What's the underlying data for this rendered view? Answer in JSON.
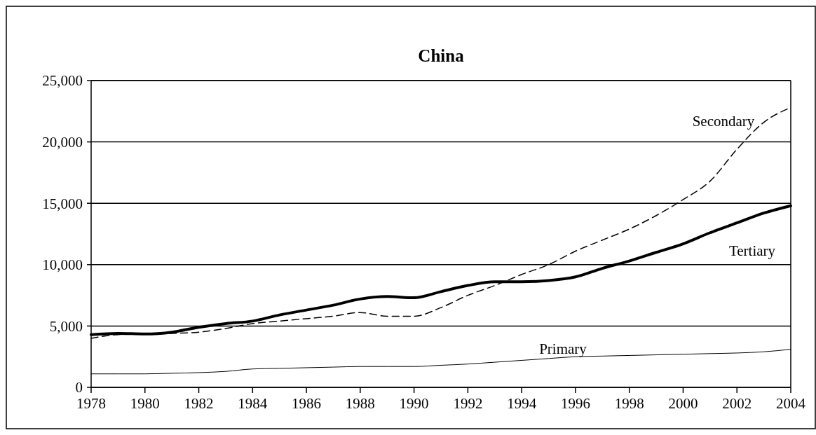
{
  "chart_data": {
    "type": "line",
    "title": "China",
    "x": [
      1978,
      1979,
      1980,
      1981,
      1982,
      1983,
      1984,
      1985,
      1986,
      1987,
      1988,
      1989,
      1990,
      1991,
      1992,
      1993,
      1994,
      1995,
      1996,
      1997,
      1998,
      1999,
      2000,
      2001,
      2002,
      2003,
      2004
    ],
    "series": [
      {
        "name": "Secondary",
        "color": "#000000",
        "line_style": "dashed",
        "values": [
          4000,
          4300,
          4350,
          4400,
          4500,
          4800,
          5200,
          5400,
          5600,
          5800,
          6100,
          5800,
          5800,
          6500,
          7500,
          8300,
          9200,
          10000,
          11100,
          12000,
          12900,
          14000,
          15300,
          16800,
          19400,
          21600,
          22800
        ]
      },
      {
        "name": "Tertiary",
        "color": "#000000",
        "line_style": "solid",
        "values": [
          4300,
          4400,
          4350,
          4500,
          4900,
          5200,
          5400,
          5900,
          6300,
          6700,
          7200,
          7400,
          7300,
          7800,
          8300,
          8600,
          8600,
          8700,
          9000,
          9700,
          10300,
          11000,
          11700,
          12600,
          13400,
          14200,
          14800
        ]
      },
      {
        "name": "Primary",
        "color": "#000000",
        "line_style": "solid",
        "values": [
          1100,
          1100,
          1100,
          1150,
          1200,
          1300,
          1500,
          1550,
          1600,
          1650,
          1700,
          1700,
          1700,
          1800,
          1900,
          2050,
          2200,
          2350,
          2500,
          2550,
          2600,
          2650,
          2700,
          2750,
          2800,
          2900,
          3100
        ]
      }
    ],
    "xlim": [
      1978,
      2004
    ],
    "xticks": [
      1978,
      1980,
      1982,
      1984,
      1986,
      1988,
      1990,
      1992,
      1994,
      1996,
      1998,
      2000,
      2002,
      2004
    ],
    "ylim": [
      0,
      25000
    ],
    "yticks": [
      {
        "value": 0,
        "label": "0"
      },
      {
        "value": 5000,
        "label": "5,000"
      },
      {
        "value": 10000,
        "label": "10,000"
      },
      {
        "value": 15000,
        "label": "15,000"
      },
      {
        "value": 20000,
        "label": "20,000"
      },
      {
        "value": 25000,
        "label": "25,000"
      }
    ],
    "grid": "y",
    "marker": "none"
  }
}
